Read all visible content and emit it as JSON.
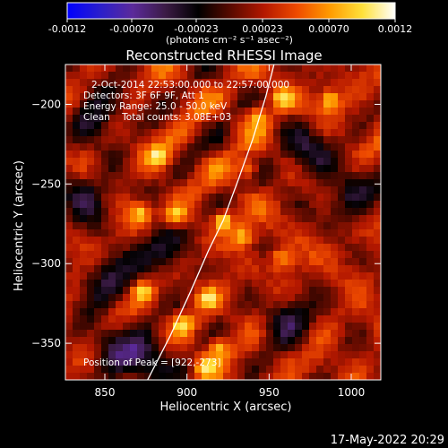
{
  "colorbar": {
    "ticks": [
      "-0.0012",
      "-0.00070",
      "-0.00023",
      "0.00023",
      "0.00070",
      "0.0012"
    ],
    "unit_label": "(photons cm⁻² s⁻¹ asec⁻²)",
    "colormap_stops": [
      "#0000ff",
      "#2a1ecc",
      "#5b2a9a",
      "#3b1b45",
      "#000000",
      "#5a0a00",
      "#b41800",
      "#ee4a00",
      "#ff9a00",
      "#ffe03a",
      "#ffffff"
    ]
  },
  "chart_data": {
    "type": "heatmap",
    "title": "Reconstructed RHESSI Image",
    "xlabel": "Heliocentric X (arcsec)",
    "ylabel": "Heliocentric Y (arcsec)",
    "xlim": [
      826,
      1018
    ],
    "ylim": [
      -373,
      -175
    ],
    "xticks": [
      850,
      900,
      950,
      1000
    ],
    "xtick_labels": [
      "850",
      "900",
      "950",
      "1000"
    ],
    "yticks": [
      -350,
      -300,
      -250,
      -200
    ],
    "ytick_labels": [
      "−350",
      "−300",
      "−250",
      "−200"
    ],
    "info_lines": [
      "2-Oct-2014 22:53:00.000 to 22:57:00.000",
      "Detectors: 3F 6F 9F, Att 1",
      "Energy Range: 25.0 - 50.0 keV",
      "Clean    Total counts: 3.08E+03"
    ],
    "peak_label": "Position of Peak = [922,-273]",
    "peak": [
      922,
      -273
    ],
    "limb_curve": [
      [
        876,
        -373
      ],
      [
        890,
        -345
      ],
      [
        902,
        -318
      ],
      [
        913,
        -292
      ],
      [
        922,
        -273
      ],
      [
        931,
        -248
      ],
      [
        940,
        -222
      ],
      [
        948,
        -195
      ],
      [
        953,
        -175
      ]
    ],
    "bright_spots": [
      [
        922,
        -273
      ],
      [
        934,
        -283
      ],
      [
        893,
        -270
      ],
      [
        919,
        -353
      ],
      [
        911,
        -365
      ],
      [
        943,
        -207
      ],
      [
        872,
        -268
      ],
      [
        897,
        -338
      ],
      [
        913,
        -322
      ],
      [
        958,
        -197
      ],
      [
        987,
        -197
      ],
      [
        958,
        -297
      ],
      [
        883,
        -233
      ],
      [
        938,
        -241
      ],
      [
        873,
        -317
      ]
    ],
    "dark_regions": [
      [
        838,
        -255
      ],
      [
        852,
        -310
      ],
      [
        878,
        -362
      ],
      [
        855,
        -355
      ],
      [
        1001,
        -258
      ],
      [
        848,
        -205
      ],
      [
        885,
        -292
      ],
      [
        962,
        -335
      ],
      [
        973,
        -232
      ]
    ]
  },
  "footer": {
    "timestamp": "17-May-2022 20:29"
  }
}
